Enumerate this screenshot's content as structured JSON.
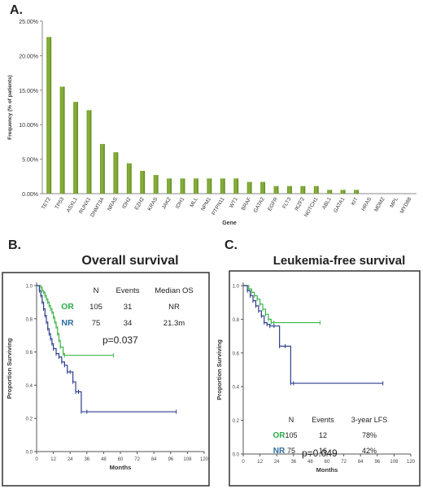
{
  "chart_data": [
    {
      "type": "bar",
      "panel_label": "A.",
      "title": "",
      "xlabel": "Gene",
      "ylabel": "Frequency (% of patients)",
      "ylim": [
        0,
        25
      ],
      "y_ticks": [
        "0.00%",
        "5.00%",
        "10.00%",
        "15.00%",
        "20.00%",
        "25.00%"
      ],
      "grid": false,
      "categories": [
        "TET2",
        "TP53",
        "ASXL1",
        "RUNX1",
        "DNMT3A",
        "NRAS",
        "IDH2",
        "EZH2",
        "KRAS",
        "JAK2",
        "IDH1",
        "MLL",
        "NPM1",
        "PTPN11",
        "WT1",
        "BRAF",
        "GATA2",
        "EGFR",
        "FLT3",
        "IKZF2",
        "NOTCH1",
        "ABL1",
        "GATA1",
        "KIT",
        "HRAS",
        "MDM2",
        "MPL",
        "MYD88"
      ],
      "values": [
        22.7,
        15.5,
        13.3,
        12.1,
        7.2,
        6.0,
        4.4,
        3.3,
        2.7,
        2.2,
        2.2,
        2.2,
        2.2,
        2.2,
        2.2,
        1.7,
        1.7,
        1.1,
        1.1,
        1.1,
        1.1,
        0.55,
        0.55,
        0.55,
        0,
        0,
        0,
        0
      ],
      "bar_color": "#8cb43c"
    },
    {
      "type": "line",
      "panel_label": "B.",
      "title": "Overall survival",
      "xlabel": "Months",
      "ylabel": "Proportion Surviving",
      "xlim": [
        0,
        120
      ],
      "ylim": [
        0,
        1.0
      ],
      "x_ticks": [
        "0",
        "12",
        "24",
        "36",
        "48",
        "60",
        "72",
        "84",
        "96",
        "108",
        "120"
      ],
      "y_ticks": [
        "0.0",
        "0.2",
        "0.4",
        "0.6",
        "0.8",
        "1.0"
      ],
      "table": {
        "headers": [
          "",
          "N",
          "Events",
          "Median OS"
        ],
        "rows": [
          {
            "label": "OR",
            "color": "#2eaa4a",
            "cells": [
              "105",
              "31",
              "NR"
            ]
          },
          {
            "label": "NR",
            "color": "#2e6e9e",
            "cells": [
              "75",
              "34",
              "21.3m"
            ]
          }
        ]
      },
      "pvalue": "p=0.037",
      "series": [
        {
          "color": "#3fb54a",
          "x": [
            0,
            3,
            4,
            5,
            6,
            7,
            8,
            9,
            10,
            11,
            12,
            13,
            14,
            15,
            16,
            17,
            19,
            20,
            55
          ],
          "y": [
            1.0,
            0.99,
            0.97,
            0.96,
            0.94,
            0.92,
            0.9,
            0.88,
            0.86,
            0.84,
            0.81,
            0.78,
            0.75,
            0.71,
            0.67,
            0.63,
            0.59,
            0.58,
            0.58
          ]
        },
        {
          "color": "#2e3f8f",
          "x": [
            0,
            2,
            3,
            4,
            5,
            6,
            7,
            8,
            9,
            10,
            11,
            12,
            14,
            16,
            18,
            20,
            22,
            24,
            26,
            28,
            30,
            32,
            36,
            100
          ],
          "y": [
            1.0,
            0.97,
            0.94,
            0.9,
            0.86,
            0.82,
            0.78,
            0.74,
            0.71,
            0.68,
            0.65,
            0.62,
            0.59,
            0.57,
            0.54,
            0.52,
            0.48,
            0.48,
            0.42,
            0.36,
            0.36,
            0.24,
            0.24,
            0.24
          ]
        }
      ]
    },
    {
      "type": "line",
      "panel_label": "C.",
      "title": "Leukemia-free survival",
      "xlabel": "Months",
      "ylabel": "Proportion Surviving",
      "xlim": [
        0,
        120
      ],
      "ylim": [
        0,
        1.0
      ],
      "x_ticks": [
        "0",
        "12",
        "24",
        "36",
        "48",
        "60",
        "72",
        "84",
        "96",
        "108",
        "120"
      ],
      "y_ticks": [
        "0.0",
        "0.2",
        "0.4",
        "0.6",
        "0.8",
        "1.0"
      ],
      "table": {
        "headers": [
          "",
          "N",
          "Events",
          "3-year LFS"
        ],
        "rows": [
          {
            "label": "OR",
            "color": "#2eaa4a",
            "cells": [
              "105",
              "12",
              "78%"
            ]
          },
          {
            "label": "NR",
            "color": "#2e6e9e",
            "cells": [
              "75",
              "16",
              "42%"
            ]
          }
        ]
      },
      "pvalue": "p=0.049",
      "series": [
        {
          "color": "#3fb54a",
          "x": [
            0,
            4,
            6,
            8,
            10,
            12,
            14,
            16,
            18,
            20,
            22,
            55
          ],
          "y": [
            1.0,
            0.98,
            0.96,
            0.94,
            0.92,
            0.89,
            0.86,
            0.83,
            0.8,
            0.78,
            0.78,
            0.78
          ]
        },
        {
          "color": "#2e3f8f",
          "x": [
            0,
            3,
            5,
            7,
            9,
            11,
            13,
            15,
            17,
            19,
            22,
            26,
            30,
            34,
            36,
            100
          ],
          "y": [
            1.0,
            0.97,
            0.94,
            0.91,
            0.88,
            0.85,
            0.82,
            0.78,
            0.77,
            0.76,
            0.76,
            0.64,
            0.64,
            0.42,
            0.42,
            0.42
          ]
        }
      ]
    }
  ]
}
